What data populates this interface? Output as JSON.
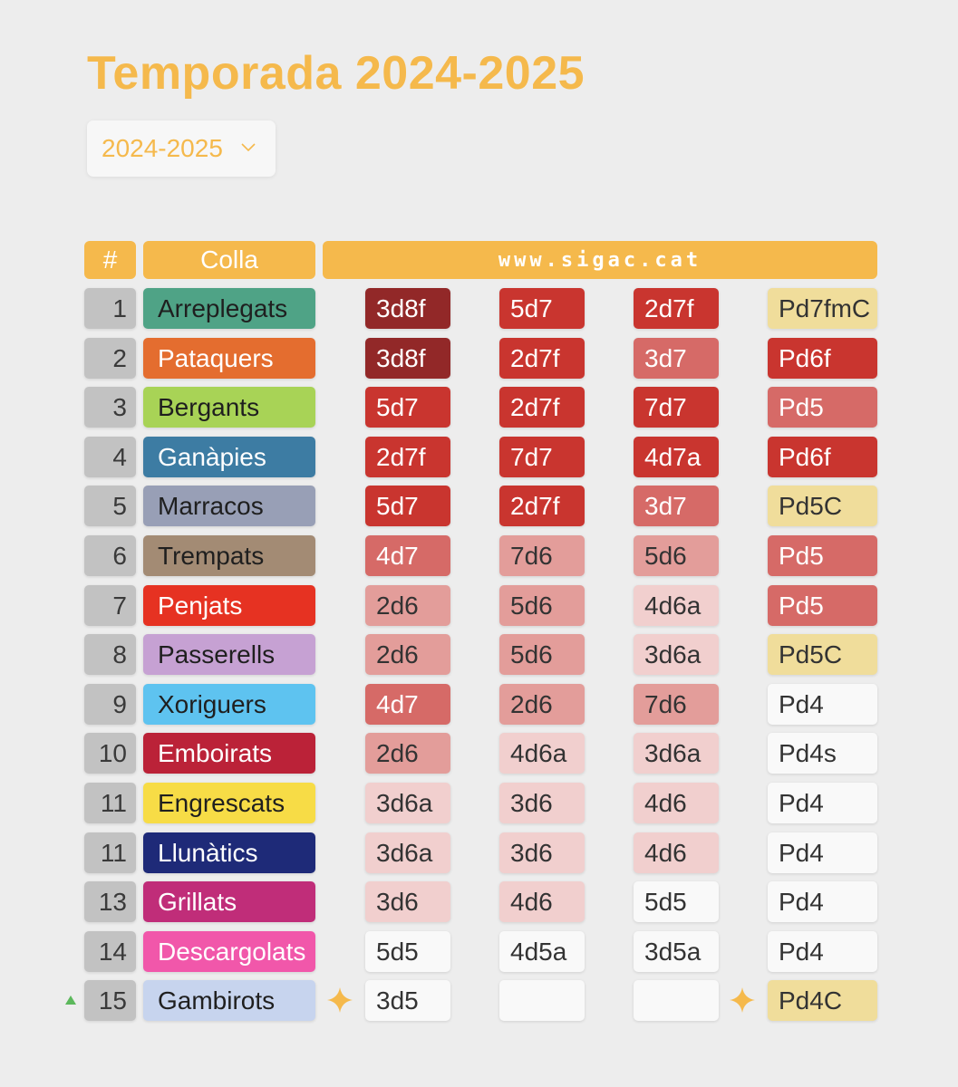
{
  "title": "Temporada 2024-2025",
  "season_select": {
    "value": "2024-2025"
  },
  "table": {
    "headers": {
      "rank": "#",
      "team": "Colla",
      "site": "www.sigac.cat"
    },
    "rows": [
      {
        "rank": "1",
        "team": "Arreplegats",
        "team_bg": "#4fa386",
        "team_fg": "#1f1f1f",
        "values": [
          "3d8f",
          "5d7",
          "2d7f",
          "Pd7fmC"
        ],
        "bgs": [
          "#922828",
          "#c9352f",
          "#c9352f",
          "#f0dd9b"
        ],
        "fgs": [
          "#fff",
          "#fff",
          "#fff",
          "#333"
        ]
      },
      {
        "rank": "2",
        "team": "Pataquers",
        "team_bg": "#e46d2f",
        "team_fg": "#ffffff",
        "values": [
          "3d8f",
          "2d7f",
          "3d7",
          "Pd6f"
        ],
        "bgs": [
          "#922828",
          "#c9352f",
          "#d66a67",
          "#c9352f"
        ],
        "fgs": [
          "#fff",
          "#fff",
          "#fff",
          "#fff"
        ]
      },
      {
        "rank": "3",
        "team": "Bergants",
        "team_bg": "#a8d356",
        "team_fg": "#1f1f1f",
        "values": [
          "5d7",
          "2d7f",
          "7d7",
          "Pd5"
        ],
        "bgs": [
          "#c9352f",
          "#c9352f",
          "#c9352f",
          "#d66a67"
        ],
        "fgs": [
          "#fff",
          "#fff",
          "#fff",
          "#fff"
        ]
      },
      {
        "rank": "4",
        "team": "Ganàpies",
        "team_bg": "#3d7ca3",
        "team_fg": "#ffffff",
        "values": [
          "2d7f",
          "7d7",
          "4d7a",
          "Pd6f"
        ],
        "bgs": [
          "#c9352f",
          "#c9352f",
          "#c9352f",
          "#c9352f"
        ],
        "fgs": [
          "#fff",
          "#fff",
          "#fff",
          "#fff"
        ]
      },
      {
        "rank": "5",
        "team": "Marracos",
        "team_bg": "#989fb6",
        "team_fg": "#1f1f1f",
        "values": [
          "5d7",
          "2d7f",
          "3d7",
          "Pd5C"
        ],
        "bgs": [
          "#c9352f",
          "#c9352f",
          "#d66a67",
          "#f0dd9b"
        ],
        "fgs": [
          "#fff",
          "#fff",
          "#fff",
          "#333"
        ]
      },
      {
        "rank": "6",
        "team": "Trempats",
        "team_bg": "#a38b74",
        "team_fg": "#1f1f1f",
        "values": [
          "4d7",
          "7d6",
          "5d6",
          "Pd5"
        ],
        "bgs": [
          "#d66a67",
          "#e39d9a",
          "#e39d9a",
          "#d66a67"
        ],
        "fgs": [
          "#fff",
          "#333",
          "#333",
          "#fff"
        ]
      },
      {
        "rank": "7",
        "team": "Penjats",
        "team_bg": "#e63222",
        "team_fg": "#ffffff",
        "values": [
          "2d6",
          "5d6",
          "4d6a",
          "Pd5"
        ],
        "bgs": [
          "#e39d9a",
          "#e39d9a",
          "#f1cfce",
          "#d66a67"
        ],
        "fgs": [
          "#333",
          "#333",
          "#333",
          "#fff"
        ]
      },
      {
        "rank": "8",
        "team": "Passerells",
        "team_bg": "#c6a1d3",
        "team_fg": "#1f1f1f",
        "values": [
          "2d6",
          "5d6",
          "3d6a",
          "Pd5C"
        ],
        "bgs": [
          "#e39d9a",
          "#e39d9a",
          "#f1cfce",
          "#f0dd9b"
        ],
        "fgs": [
          "#333",
          "#333",
          "#333",
          "#333"
        ]
      },
      {
        "rank": "9",
        "team": "Xoriguers",
        "team_bg": "#5ec3f0",
        "team_fg": "#1f1f1f",
        "values": [
          "4d7",
          "2d6",
          "7d6",
          "Pd4"
        ],
        "bgs": [
          "#d66a67",
          "#e39d9a",
          "#e39d9a",
          "#f9f9f9"
        ],
        "fgs": [
          "#fff",
          "#333",
          "#333",
          "#333"
        ]
      },
      {
        "rank": "10",
        "team": "Emboirats",
        "team_bg": "#bb2238",
        "team_fg": "#ffffff",
        "values": [
          "2d6",
          "4d6a",
          "3d6a",
          "Pd4s"
        ],
        "bgs": [
          "#e39d9a",
          "#f1cfce",
          "#f1cfce",
          "#f9f9f9"
        ],
        "fgs": [
          "#333",
          "#333",
          "#333",
          "#333"
        ]
      },
      {
        "rank": "11",
        "team": "Engrescats",
        "team_bg": "#f7dc46",
        "team_fg": "#1f1f1f",
        "values": [
          "3d6a",
          "3d6",
          "4d6",
          "Pd4"
        ],
        "bgs": [
          "#f1cfce",
          "#f1cfce",
          "#f1cfce",
          "#f9f9f9"
        ],
        "fgs": [
          "#333",
          "#333",
          "#333",
          "#333"
        ]
      },
      {
        "rank": "11",
        "team": "Llunàtics",
        "team_bg": "#1e2a78",
        "team_fg": "#ffffff",
        "values": [
          "3d6a",
          "3d6",
          "4d6",
          "Pd4"
        ],
        "bgs": [
          "#f1cfce",
          "#f1cfce",
          "#f1cfce",
          "#f9f9f9"
        ],
        "fgs": [
          "#333",
          "#333",
          "#333",
          "#333"
        ]
      },
      {
        "rank": "13",
        "team": "Grillats",
        "team_bg": "#c02d79",
        "team_fg": "#ffffff",
        "values": [
          "3d6",
          "4d6",
          "5d5",
          "Pd4"
        ],
        "bgs": [
          "#f1cfce",
          "#f1cfce",
          "#f9f9f9",
          "#f9f9f9"
        ],
        "fgs": [
          "#333",
          "#333",
          "#333",
          "#333"
        ]
      },
      {
        "rank": "14",
        "team": "Descargolats",
        "team_bg": "#f157aa",
        "team_fg": "#ffffff",
        "values": [
          "5d5",
          "4d5a",
          "3d5a",
          "Pd4"
        ],
        "bgs": [
          "#f9f9f9",
          "#f9f9f9",
          "#f9f9f9",
          "#f9f9f9"
        ],
        "fgs": [
          "#333",
          "#333",
          "#333",
          "#333"
        ]
      },
      {
        "rank": "15",
        "team": "Gambirots",
        "team_bg": "#c7d4ee",
        "team_fg": "#1f1f1f",
        "values": [
          "3d5",
          "",
          "",
          "Pd4C"
        ],
        "bgs": [
          "#f9f9f9",
          "#f9f9f9",
          "#f9f9f9",
          "#f0dd9b"
        ],
        "fgs": [
          "#333",
          "#333",
          "#333",
          "#333"
        ],
        "rank_change": "up-arrow-icon",
        "stars": [
          0,
          3
        ]
      }
    ]
  },
  "colors": {
    "accent": "#f5b94c",
    "rank_up": "#5cb85c",
    "star": "#f5b94c"
  }
}
